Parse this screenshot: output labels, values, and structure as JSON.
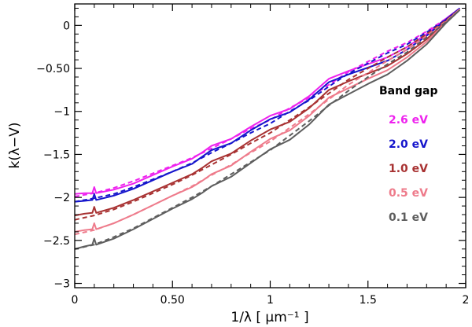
{
  "chart_data": {
    "type": "line",
    "title": "",
    "xlabel": "1/λ [ μm⁻¹ ]",
    "ylabel": "k(λ−V)",
    "xlim": [
      0,
      2
    ],
    "ylim": [
      -3.05,
      0.25
    ],
    "x_ticks": [
      0,
      0.5,
      1,
      1.5,
      2
    ],
    "x_tick_labels": [
      "0",
      "0.50",
      "1",
      "1.5",
      "2"
    ],
    "y_ticks": [
      0,
      -0.5,
      -1,
      -1.5,
      -2,
      -2.5,
      -3
    ],
    "y_tick_labels": [
      "0",
      "−0.50",
      "−1",
      "−1.5",
      "−2",
      "−2.5",
      "−3"
    ],
    "legend_title": "Band gap",
    "legend_position": "right",
    "series": [
      {
        "name": "2.6 eV",
        "color": "#ee22ee",
        "solid": [
          [
            0,
            -1.96
          ],
          [
            0.05,
            -1.95
          ],
          [
            0.09,
            -1.95
          ],
          [
            0.1,
            -1.88
          ],
          [
            0.11,
            -1.95
          ],
          [
            0.2,
            -1.91
          ],
          [
            0.3,
            -1.84
          ],
          [
            0.4,
            -1.74
          ],
          [
            0.5,
            -1.64
          ],
          [
            0.6,
            -1.55
          ],
          [
            0.65,
            -1.48
          ],
          [
            0.7,
            -1.4
          ],
          [
            0.8,
            -1.32
          ],
          [
            0.9,
            -1.18
          ],
          [
            1.0,
            -1.05
          ],
          [
            1.1,
            -0.97
          ],
          [
            1.2,
            -0.82
          ],
          [
            1.3,
            -0.62
          ],
          [
            1.4,
            -0.53
          ],
          [
            1.5,
            -0.45
          ],
          [
            1.6,
            -0.37
          ],
          [
            1.7,
            -0.25
          ],
          [
            1.8,
            -0.1
          ],
          [
            1.9,
            0.08
          ],
          [
            1.97,
            0.2
          ]
        ],
        "dashed": [
          [
            0,
            -1.99
          ],
          [
            0.1,
            -1.95
          ],
          [
            0.2,
            -1.89
          ],
          [
            0.3,
            -1.81
          ],
          [
            0.4,
            -1.72
          ],
          [
            0.5,
            -1.63
          ],
          [
            0.6,
            -1.54
          ],
          [
            0.7,
            -1.43
          ],
          [
            0.8,
            -1.32
          ],
          [
            0.9,
            -1.2
          ],
          [
            1.0,
            -1.1
          ],
          [
            1.1,
            -0.96
          ],
          [
            1.2,
            -0.84
          ],
          [
            1.3,
            -0.69
          ],
          [
            1.4,
            -0.54
          ],
          [
            1.5,
            -0.42
          ],
          [
            1.6,
            -0.3
          ],
          [
            1.7,
            -0.2
          ],
          [
            1.8,
            -0.07
          ],
          [
            1.9,
            0.08
          ],
          [
            1.97,
            0.2
          ]
        ]
      },
      {
        "name": "2.0 eV",
        "color": "#1515cc",
        "solid": [
          [
            0,
            -2.05
          ],
          [
            0.05,
            -2.04
          ],
          [
            0.09,
            -2.03
          ],
          [
            0.1,
            -1.96
          ],
          [
            0.11,
            -2.03
          ],
          [
            0.2,
            -1.98
          ],
          [
            0.3,
            -1.9
          ],
          [
            0.4,
            -1.8
          ],
          [
            0.5,
            -1.7
          ],
          [
            0.6,
            -1.61
          ],
          [
            0.65,
            -1.53
          ],
          [
            0.7,
            -1.45
          ],
          [
            0.8,
            -1.37
          ],
          [
            0.9,
            -1.22
          ],
          [
            1.0,
            -1.09
          ],
          [
            1.1,
            -1.01
          ],
          [
            1.2,
            -0.86
          ],
          [
            1.3,
            -0.66
          ],
          [
            1.4,
            -0.57
          ],
          [
            1.5,
            -0.49
          ],
          [
            1.6,
            -0.41
          ],
          [
            1.7,
            -0.28
          ],
          [
            1.8,
            -0.12
          ],
          [
            1.9,
            0.07
          ],
          [
            1.97,
            0.2
          ]
        ],
        "dashed": [
          [
            0,
            -2.05
          ],
          [
            0.1,
            -2.01
          ],
          [
            0.2,
            -1.96
          ],
          [
            0.3,
            -1.88
          ],
          [
            0.4,
            -1.79
          ],
          [
            0.5,
            -1.7
          ],
          [
            0.6,
            -1.6
          ],
          [
            0.7,
            -1.48
          ],
          [
            0.8,
            -1.37
          ],
          [
            0.9,
            -1.25
          ],
          [
            1.0,
            -1.14
          ],
          [
            1.1,
            -1.0
          ],
          [
            1.2,
            -0.87
          ],
          [
            1.3,
            -0.71
          ],
          [
            1.4,
            -0.56
          ],
          [
            1.5,
            -0.44
          ],
          [
            1.6,
            -0.32
          ],
          [
            1.7,
            -0.22
          ],
          [
            1.8,
            -0.08
          ],
          [
            1.9,
            0.07
          ],
          [
            1.97,
            0.2
          ]
        ]
      },
      {
        "name": "1.0 eV",
        "color": "#a83232",
        "solid": [
          [
            0,
            -2.21
          ],
          [
            0.05,
            -2.19
          ],
          [
            0.09,
            -2.18
          ],
          [
            0.1,
            -2.11
          ],
          [
            0.11,
            -2.18
          ],
          [
            0.2,
            -2.12
          ],
          [
            0.3,
            -2.03
          ],
          [
            0.4,
            -1.93
          ],
          [
            0.5,
            -1.83
          ],
          [
            0.6,
            -1.73
          ],
          [
            0.65,
            -1.66
          ],
          [
            0.7,
            -1.58
          ],
          [
            0.8,
            -1.49
          ],
          [
            0.9,
            -1.34
          ],
          [
            1.0,
            -1.21
          ],
          [
            1.1,
            -1.12
          ],
          [
            1.2,
            -0.96
          ],
          [
            1.3,
            -0.75
          ],
          [
            1.4,
            -0.65
          ],
          [
            1.5,
            -0.56
          ],
          [
            1.6,
            -0.47
          ],
          [
            1.7,
            -0.33
          ],
          [
            1.8,
            -0.16
          ],
          [
            1.9,
            0.05
          ],
          [
            1.97,
            0.19
          ]
        ],
        "dashed": [
          [
            0,
            -2.26
          ],
          [
            0.1,
            -2.21
          ],
          [
            0.2,
            -2.14
          ],
          [
            0.3,
            -2.05
          ],
          [
            0.4,
            -1.95
          ],
          [
            0.5,
            -1.85
          ],
          [
            0.6,
            -1.74
          ],
          [
            0.7,
            -1.62
          ],
          [
            0.8,
            -1.5
          ],
          [
            0.9,
            -1.37
          ],
          [
            1.0,
            -1.25
          ],
          [
            1.1,
            -1.1
          ],
          [
            1.2,
            -0.95
          ],
          [
            1.3,
            -0.79
          ],
          [
            1.4,
            -0.63
          ],
          [
            1.5,
            -0.5
          ],
          [
            1.6,
            -0.37
          ],
          [
            1.7,
            -0.25
          ],
          [
            1.8,
            -0.1
          ],
          [
            1.9,
            0.06
          ],
          [
            1.97,
            0.19
          ]
        ]
      },
      {
        "name": "0.5 eV",
        "color": "#ee7b8b",
        "solid": [
          [
            0,
            -2.4
          ],
          [
            0.05,
            -2.38
          ],
          [
            0.09,
            -2.37
          ],
          [
            0.1,
            -2.3
          ],
          [
            0.11,
            -2.37
          ],
          [
            0.2,
            -2.3
          ],
          [
            0.3,
            -2.2
          ],
          [
            0.4,
            -2.09
          ],
          [
            0.5,
            -1.98
          ],
          [
            0.6,
            -1.88
          ],
          [
            0.65,
            -1.81
          ],
          [
            0.7,
            -1.73
          ],
          [
            0.8,
            -1.63
          ],
          [
            0.9,
            -1.47
          ],
          [
            1.0,
            -1.32
          ],
          [
            1.1,
            -1.22
          ],
          [
            1.2,
            -1.05
          ],
          [
            1.3,
            -0.84
          ],
          [
            1.4,
            -0.73
          ],
          [
            1.5,
            -0.62
          ],
          [
            1.6,
            -0.52
          ],
          [
            1.7,
            -0.37
          ],
          [
            1.8,
            -0.19
          ],
          [
            1.9,
            0.04
          ],
          [
            1.97,
            0.19
          ]
        ],
        "dashed": [
          [
            0,
            -2.43
          ],
          [
            0.1,
            -2.38
          ],
          [
            0.2,
            -2.3
          ],
          [
            0.3,
            -2.2
          ],
          [
            0.4,
            -2.09
          ],
          [
            0.5,
            -1.98
          ],
          [
            0.6,
            -1.87
          ],
          [
            0.7,
            -1.74
          ],
          [
            0.8,
            -1.62
          ],
          [
            0.9,
            -1.48
          ],
          [
            1.0,
            -1.35
          ],
          [
            1.1,
            -1.19
          ],
          [
            1.2,
            -1.03
          ],
          [
            1.3,
            -0.86
          ],
          [
            1.4,
            -0.69
          ],
          [
            1.5,
            -0.55
          ],
          [
            1.6,
            -0.41
          ],
          [
            1.7,
            -0.28
          ],
          [
            1.8,
            -0.12
          ],
          [
            1.9,
            0.05
          ],
          [
            1.97,
            0.19
          ]
        ]
      },
      {
        "name": "0.1 eV",
        "color": "#5e5e5e",
        "solid": [
          [
            0,
            -2.6
          ],
          [
            0.05,
            -2.57
          ],
          [
            0.09,
            -2.55
          ],
          [
            0.1,
            -2.48
          ],
          [
            0.11,
            -2.55
          ],
          [
            0.2,
            -2.48
          ],
          [
            0.3,
            -2.37
          ],
          [
            0.4,
            -2.25
          ],
          [
            0.5,
            -2.13
          ],
          [
            0.6,
            -2.02
          ],
          [
            0.65,
            -1.95
          ],
          [
            0.7,
            -1.87
          ],
          [
            0.8,
            -1.76
          ],
          [
            0.9,
            -1.6
          ],
          [
            1.0,
            -1.44
          ],
          [
            1.1,
            -1.33
          ],
          [
            1.2,
            -1.15
          ],
          [
            1.3,
            -0.92
          ],
          [
            1.4,
            -0.8
          ],
          [
            1.5,
            -0.68
          ],
          [
            1.6,
            -0.57
          ],
          [
            1.7,
            -0.41
          ],
          [
            1.8,
            -0.22
          ],
          [
            1.9,
            0.03
          ],
          [
            1.97,
            0.18
          ]
        ],
        "dashed": [
          [
            0,
            -2.6
          ],
          [
            0.1,
            -2.55
          ],
          [
            0.2,
            -2.46
          ],
          [
            0.3,
            -2.36
          ],
          [
            0.4,
            -2.24
          ],
          [
            0.5,
            -2.12
          ],
          [
            0.6,
            -2.0
          ],
          [
            0.7,
            -1.87
          ],
          [
            0.8,
            -1.73
          ],
          [
            0.9,
            -1.59
          ],
          [
            1.0,
            -1.45
          ],
          [
            1.1,
            -1.28
          ],
          [
            1.2,
            -1.11
          ],
          [
            1.3,
            -0.93
          ],
          [
            1.4,
            -0.76
          ],
          [
            1.5,
            -0.6
          ],
          [
            1.6,
            -0.45
          ],
          [
            1.7,
            -0.31
          ],
          [
            1.8,
            -0.14
          ],
          [
            1.9,
            0.04
          ],
          [
            1.97,
            0.18
          ]
        ]
      }
    ]
  }
}
